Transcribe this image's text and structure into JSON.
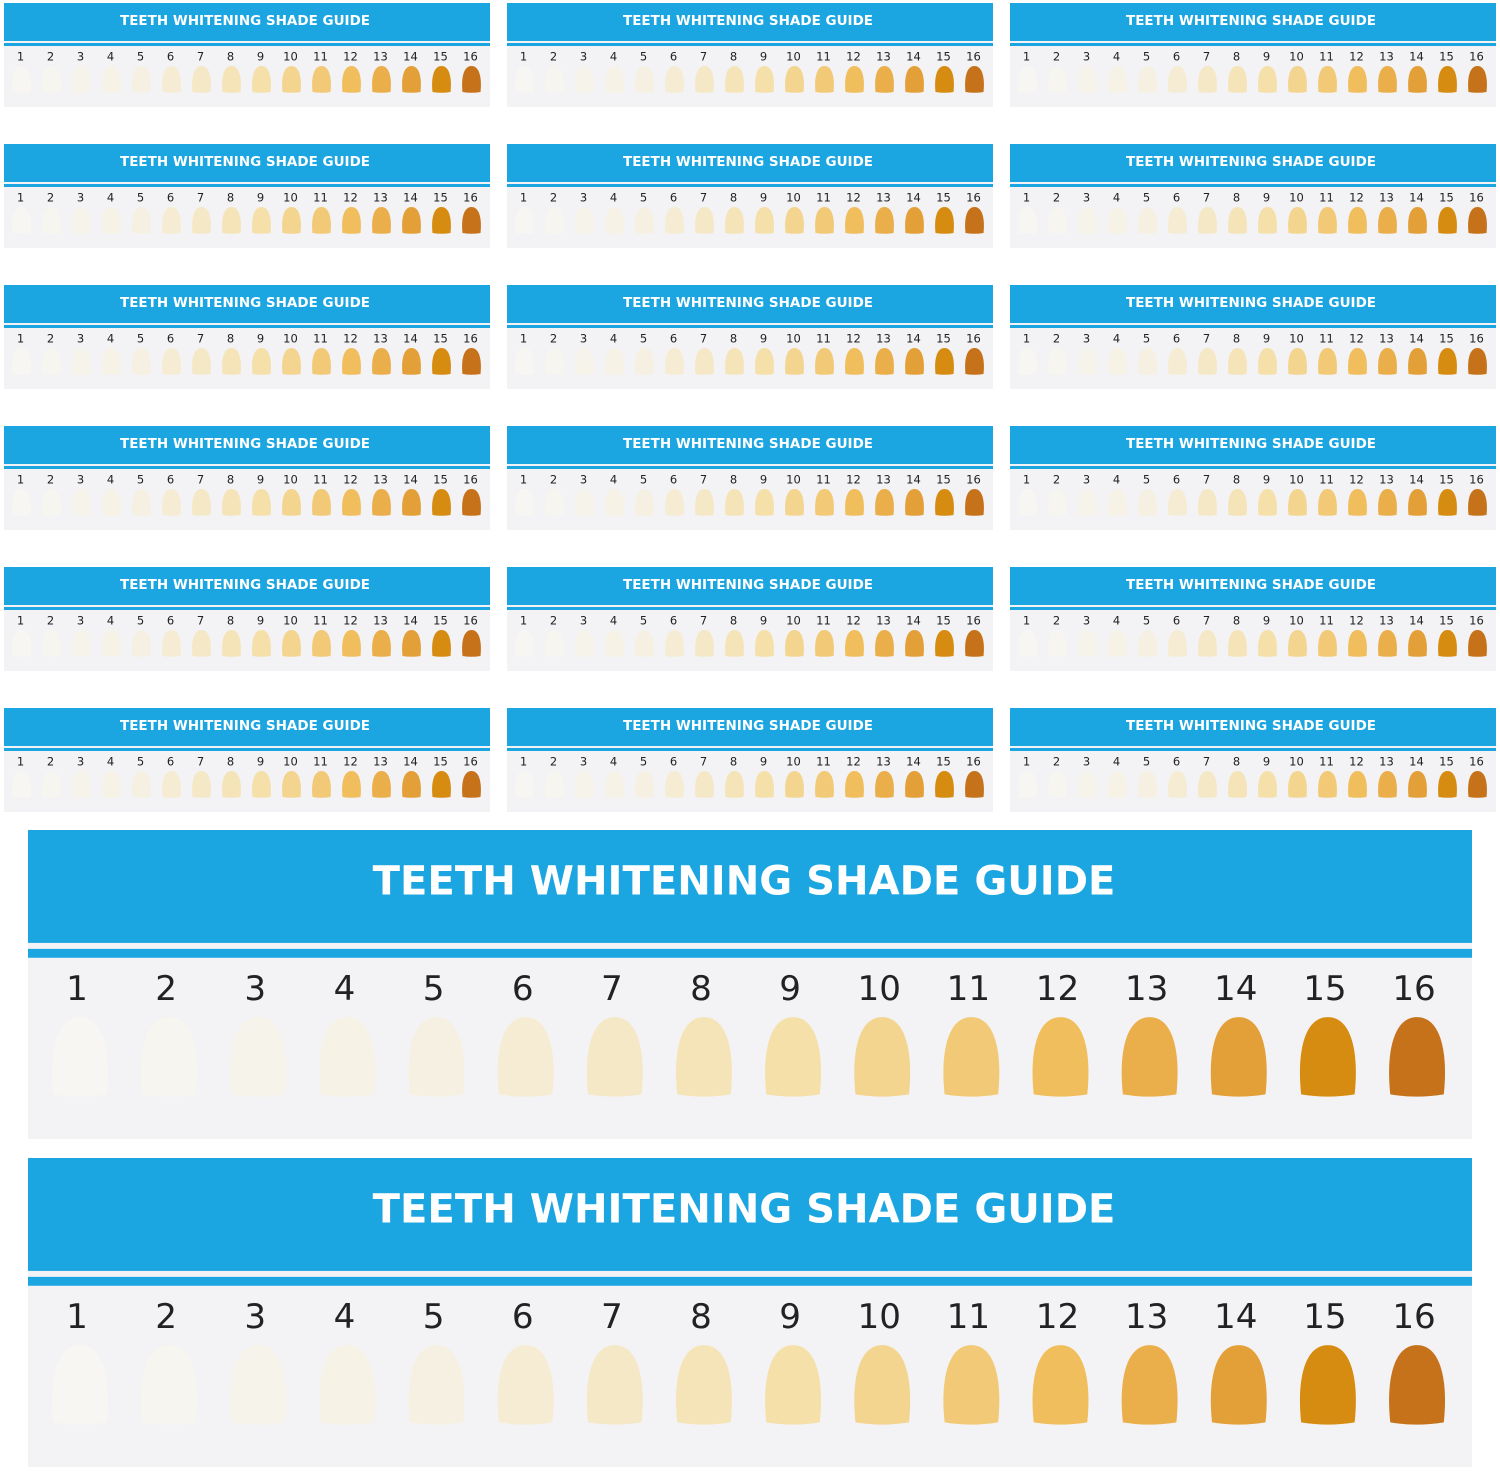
{
  "cards": [
    {
      "title": "TEETH WHITENING SHADE GUIDE",
      "shades": [
        1,
        2,
        3,
        4,
        5,
        6,
        7,
        8,
        9,
        10,
        11,
        12,
        13,
        14,
        15,
        16
      ]
    },
    {
      "title": "TEETH WHITENING SHADE GUIDE",
      "shades": [
        1,
        2,
        3,
        4,
        5,
        6,
        7,
        8,
        9,
        10,
        11,
        12,
        13,
        14,
        15,
        16
      ]
    },
    {
      "title": "TEETH WHITENING SHADE GUIDE",
      "shades": [
        1,
        2,
        3,
        4,
        5,
        6,
        7,
        8,
        9,
        10,
        11,
        12,
        13,
        14,
        15,
        16
      ]
    },
    {
      "title": "TEETH WHITENING SHADE GUIDE",
      "shades": [
        1,
        2,
        3,
        4,
        5,
        6,
        7,
        8,
        9,
        10,
        11,
        12,
        13,
        14,
        15,
        16
      ]
    },
    {
      "title": "TEETH WHITENING SHADE GUIDE",
      "shades": [
        1,
        2,
        3,
        4,
        5,
        6,
        7,
        8,
        9,
        10,
        11,
        12,
        13,
        14,
        15,
        16
      ]
    },
    {
      "title": "TEETH WHITENING SHADE GUIDE",
      "shades": [
        1,
        2,
        3,
        4,
        5,
        6,
        7,
        8,
        9,
        10,
        11,
        12,
        13,
        14,
        15,
        16
      ]
    },
    {
      "title": "TEETH WHITENING SHADE GUIDE",
      "shades": [
        1,
        2,
        3,
        4,
        5,
        6,
        7,
        8,
        9,
        10,
        11,
        12,
        13,
        14,
        15,
        16
      ]
    },
    {
      "title": "TEETH WHITENING SHADE GUIDE",
      "shades": [
        1,
        2,
        3,
        4,
        5,
        6,
        7,
        8,
        9,
        10,
        11,
        12,
        13,
        14,
        15,
        16
      ]
    },
    {
      "title": "TEETH WHITENING SHADE GUIDE",
      "shades": [
        1,
        2,
        3,
        4,
        5,
        6,
        7,
        8,
        9,
        10,
        11,
        12,
        13,
        14,
        15,
        16
      ]
    },
    {
      "title": "TEETH WHITENING SHADE GUIDE",
      "shades": [
        1,
        2,
        3,
        4,
        5,
        6,
        7,
        8,
        9,
        10,
        11,
        12,
        13,
        14,
        15,
        16
      ]
    },
    {
      "title": "TEETH WHITENING SHADE GUIDE",
      "shades": [
        1,
        2,
        3,
        4,
        5,
        6,
        7,
        8,
        9,
        10,
        11,
        12,
        13,
        14,
        15,
        16
      ]
    },
    {
      "title": "TEETH WHITENING SHADE GUIDE",
      "shades": [
        1,
        2,
        3,
        4,
        5,
        6,
        7,
        8,
        9,
        10,
        11,
        12,
        13,
        14,
        15,
        16
      ]
    },
    {
      "title": "TEETH WHITENING SHADE GUIDE",
      "shades": [
        1,
        2,
        3,
        4,
        5,
        6,
        7,
        8,
        9,
        10,
        11,
        12,
        13,
        14,
        15,
        16
      ]
    },
    {
      "title": "TEETH WHITENING SHADE GUIDE",
      "shades": [
        1,
        2,
        3,
        4,
        5,
        6,
        7,
        8,
        9,
        10,
        11,
        12,
        13,
        14,
        15,
        16
      ]
    },
    {
      "title": "TEETH WHITENING SHADE GUIDE",
      "shades": [
        1,
        2,
        3,
        4,
        5,
        6,
        7,
        8,
        9,
        10,
        11,
        12,
        13,
        14,
        15,
        16
      ]
    },
    {
      "title": "TEETH WHITENING SHADE GUIDE",
      "shades": [
        1,
        2,
        3,
        4,
        5,
        6,
        7,
        8,
        9,
        10,
        11,
        12,
        13,
        14,
        15,
        16
      ]
    },
    {
      "title": "TEETH WHITENING SHADE GUIDE",
      "shades": [
        1,
        2,
        3,
        4,
        5,
        6,
        7,
        8,
        9,
        10,
        11,
        12,
        13,
        14,
        15,
        16
      ]
    },
    {
      "title": "TEETH WHITENING SHADE GUIDE",
      "shades": [
        1,
        2,
        3,
        4,
        5,
        6,
        7,
        8,
        9,
        10,
        11,
        12,
        13,
        14,
        15,
        16
      ]
    },
    {
      "title": "TEETH WHITENING SHADE GUIDE",
      "shades": [
        1,
        2,
        3,
        4,
        5,
        6,
        7,
        8,
        9,
        10,
        11,
        12,
        13,
        14,
        15,
        16
      ]
    },
    {
      "title": "TEETH WHITENING SHADE GUIDE",
      "shades": [
        1,
        2,
        3,
        4,
        5,
        6,
        7,
        8,
        9,
        10,
        11,
        12,
        13,
        14,
        15,
        16
      ]
    }
  ]
}
